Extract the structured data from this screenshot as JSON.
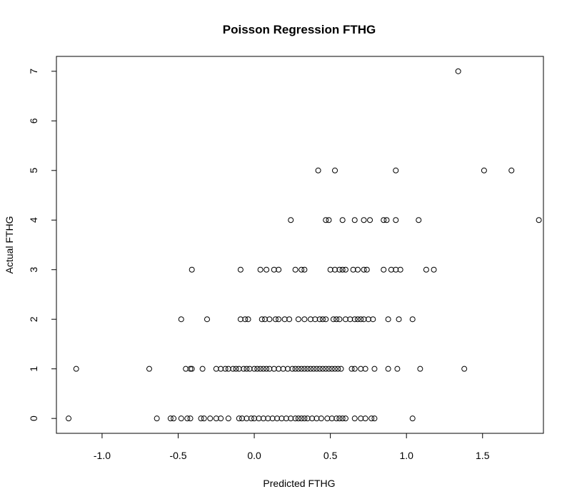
{
  "chart_data": {
    "type": "scatter",
    "title": "Poisson Regression FTHG",
    "xlabel": "Predicted FTHG",
    "ylabel": "Actual FTHG",
    "xlim": [
      -1.3,
      1.9
    ],
    "ylim": [
      -0.3,
      7.3
    ],
    "x_ticks": [
      -1.0,
      -0.5,
      0.0,
      0.5,
      1.0,
      1.5
    ],
    "x_tick_labels": [
      "-1.0",
      "-0.5",
      "0.0",
      "0.5",
      "1.0",
      "1.5"
    ],
    "y_ticks": [
      0,
      1,
      2,
      3,
      4,
      5,
      6,
      7
    ],
    "y_tick_labels": [
      "0",
      "1",
      "2",
      "3",
      "4",
      "5",
      "6",
      "7"
    ],
    "grid": false,
    "marker": "open-circle",
    "points": [
      {
        "x": -1.22,
        "y": 0
      },
      {
        "x": -0.64,
        "y": 0
      },
      {
        "x": -0.55,
        "y": 0
      },
      {
        "x": -0.53,
        "y": 0
      },
      {
        "x": -0.48,
        "y": 0
      },
      {
        "x": -0.44,
        "y": 0
      },
      {
        "x": -0.42,
        "y": 0
      },
      {
        "x": -0.35,
        "y": 0
      },
      {
        "x": -0.33,
        "y": 0
      },
      {
        "x": -0.29,
        "y": 0
      },
      {
        "x": -0.25,
        "y": 0
      },
      {
        "x": -0.22,
        "y": 0
      },
      {
        "x": -0.17,
        "y": 0
      },
      {
        "x": -0.1,
        "y": 0
      },
      {
        "x": -0.08,
        "y": 0
      },
      {
        "x": -0.05,
        "y": 0
      },
      {
        "x": -0.02,
        "y": 0
      },
      {
        "x": 0.0,
        "y": 0
      },
      {
        "x": 0.03,
        "y": 0
      },
      {
        "x": 0.06,
        "y": 0
      },
      {
        "x": 0.09,
        "y": 0
      },
      {
        "x": 0.12,
        "y": 0
      },
      {
        "x": 0.15,
        "y": 0
      },
      {
        "x": 0.18,
        "y": 0
      },
      {
        "x": 0.21,
        "y": 0
      },
      {
        "x": 0.24,
        "y": 0
      },
      {
        "x": 0.27,
        "y": 0
      },
      {
        "x": 0.29,
        "y": 0
      },
      {
        "x": 0.31,
        "y": 0
      },
      {
        "x": 0.33,
        "y": 0
      },
      {
        "x": 0.35,
        "y": 0
      },
      {
        "x": 0.38,
        "y": 0
      },
      {
        "x": 0.41,
        "y": 0
      },
      {
        "x": 0.44,
        "y": 0
      },
      {
        "x": 0.48,
        "y": 0
      },
      {
        "x": 0.51,
        "y": 0
      },
      {
        "x": 0.54,
        "y": 0
      },
      {
        "x": 0.56,
        "y": 0
      },
      {
        "x": 0.58,
        "y": 0
      },
      {
        "x": 0.6,
        "y": 0
      },
      {
        "x": 0.66,
        "y": 0
      },
      {
        "x": 0.7,
        "y": 0
      },
      {
        "x": 0.73,
        "y": 0
      },
      {
        "x": 0.77,
        "y": 0
      },
      {
        "x": 0.79,
        "y": 0
      },
      {
        "x": 1.04,
        "y": 0
      },
      {
        "x": -1.17,
        "y": 1
      },
      {
        "x": -0.69,
        "y": 1
      },
      {
        "x": -0.45,
        "y": 1
      },
      {
        "x": -0.42,
        "y": 1
      },
      {
        "x": -0.41,
        "y": 1
      },
      {
        "x": -0.34,
        "y": 1
      },
      {
        "x": -0.25,
        "y": 1
      },
      {
        "x": -0.22,
        "y": 1
      },
      {
        "x": -0.19,
        "y": 1
      },
      {
        "x": -0.17,
        "y": 1
      },
      {
        "x": -0.14,
        "y": 1
      },
      {
        "x": -0.12,
        "y": 1
      },
      {
        "x": -0.1,
        "y": 1
      },
      {
        "x": -0.07,
        "y": 1
      },
      {
        "x": -0.05,
        "y": 1
      },
      {
        "x": -0.03,
        "y": 1
      },
      {
        "x": 0.0,
        "y": 1
      },
      {
        "x": 0.02,
        "y": 1
      },
      {
        "x": 0.04,
        "y": 1
      },
      {
        "x": 0.06,
        "y": 1
      },
      {
        "x": 0.08,
        "y": 1
      },
      {
        "x": 0.1,
        "y": 1
      },
      {
        "x": 0.13,
        "y": 1
      },
      {
        "x": 0.16,
        "y": 1
      },
      {
        "x": 0.19,
        "y": 1
      },
      {
        "x": 0.22,
        "y": 1
      },
      {
        "x": 0.25,
        "y": 1
      },
      {
        "x": 0.27,
        "y": 1
      },
      {
        "x": 0.29,
        "y": 1
      },
      {
        "x": 0.31,
        "y": 1
      },
      {
        "x": 0.33,
        "y": 1
      },
      {
        "x": 0.35,
        "y": 1
      },
      {
        "x": 0.37,
        "y": 1
      },
      {
        "x": 0.39,
        "y": 1
      },
      {
        "x": 0.41,
        "y": 1
      },
      {
        "x": 0.43,
        "y": 1
      },
      {
        "x": 0.45,
        "y": 1
      },
      {
        "x": 0.47,
        "y": 1
      },
      {
        "x": 0.49,
        "y": 1
      },
      {
        "x": 0.51,
        "y": 1
      },
      {
        "x": 0.53,
        "y": 1
      },
      {
        "x": 0.55,
        "y": 1
      },
      {
        "x": 0.57,
        "y": 1
      },
      {
        "x": 0.64,
        "y": 1
      },
      {
        "x": 0.66,
        "y": 1
      },
      {
        "x": 0.7,
        "y": 1
      },
      {
        "x": 0.73,
        "y": 1
      },
      {
        "x": 0.79,
        "y": 1
      },
      {
        "x": 0.88,
        "y": 1
      },
      {
        "x": 0.94,
        "y": 1
      },
      {
        "x": 1.09,
        "y": 1
      },
      {
        "x": 1.38,
        "y": 1
      },
      {
        "x": -0.48,
        "y": 2
      },
      {
        "x": -0.31,
        "y": 2
      },
      {
        "x": -0.09,
        "y": 2
      },
      {
        "x": -0.06,
        "y": 2
      },
      {
        "x": -0.04,
        "y": 2
      },
      {
        "x": 0.05,
        "y": 2
      },
      {
        "x": 0.07,
        "y": 2
      },
      {
        "x": 0.1,
        "y": 2
      },
      {
        "x": 0.14,
        "y": 2
      },
      {
        "x": 0.16,
        "y": 2
      },
      {
        "x": 0.2,
        "y": 2
      },
      {
        "x": 0.23,
        "y": 2
      },
      {
        "x": 0.29,
        "y": 2
      },
      {
        "x": 0.33,
        "y": 2
      },
      {
        "x": 0.37,
        "y": 2
      },
      {
        "x": 0.4,
        "y": 2
      },
      {
        "x": 0.43,
        "y": 2
      },
      {
        "x": 0.45,
        "y": 2
      },
      {
        "x": 0.47,
        "y": 2
      },
      {
        "x": 0.52,
        "y": 2
      },
      {
        "x": 0.54,
        "y": 2
      },
      {
        "x": 0.56,
        "y": 2
      },
      {
        "x": 0.6,
        "y": 2
      },
      {
        "x": 0.63,
        "y": 2
      },
      {
        "x": 0.66,
        "y": 2
      },
      {
        "x": 0.68,
        "y": 2
      },
      {
        "x": 0.7,
        "y": 2
      },
      {
        "x": 0.72,
        "y": 2
      },
      {
        "x": 0.75,
        "y": 2
      },
      {
        "x": 0.78,
        "y": 2
      },
      {
        "x": 0.88,
        "y": 2
      },
      {
        "x": 0.95,
        "y": 2
      },
      {
        "x": 1.04,
        "y": 2
      },
      {
        "x": -0.41,
        "y": 3
      },
      {
        "x": -0.09,
        "y": 3
      },
      {
        "x": 0.04,
        "y": 3
      },
      {
        "x": 0.08,
        "y": 3
      },
      {
        "x": 0.13,
        "y": 3
      },
      {
        "x": 0.16,
        "y": 3
      },
      {
        "x": 0.27,
        "y": 3
      },
      {
        "x": 0.31,
        "y": 3
      },
      {
        "x": 0.33,
        "y": 3
      },
      {
        "x": 0.5,
        "y": 3
      },
      {
        "x": 0.53,
        "y": 3
      },
      {
        "x": 0.56,
        "y": 3
      },
      {
        "x": 0.58,
        "y": 3
      },
      {
        "x": 0.6,
        "y": 3
      },
      {
        "x": 0.65,
        "y": 3
      },
      {
        "x": 0.68,
        "y": 3
      },
      {
        "x": 0.72,
        "y": 3
      },
      {
        "x": 0.74,
        "y": 3
      },
      {
        "x": 0.85,
        "y": 3
      },
      {
        "x": 0.9,
        "y": 3
      },
      {
        "x": 0.93,
        "y": 3
      },
      {
        "x": 0.96,
        "y": 3
      },
      {
        "x": 1.13,
        "y": 3
      },
      {
        "x": 1.18,
        "y": 3
      },
      {
        "x": 0.24,
        "y": 4
      },
      {
        "x": 0.47,
        "y": 4
      },
      {
        "x": 0.49,
        "y": 4
      },
      {
        "x": 0.58,
        "y": 4
      },
      {
        "x": 0.66,
        "y": 4
      },
      {
        "x": 0.72,
        "y": 4
      },
      {
        "x": 0.76,
        "y": 4
      },
      {
        "x": 0.85,
        "y": 4
      },
      {
        "x": 0.87,
        "y": 4
      },
      {
        "x": 0.93,
        "y": 4
      },
      {
        "x": 1.08,
        "y": 4
      },
      {
        "x": 1.87,
        "y": 4
      },
      {
        "x": 0.42,
        "y": 5
      },
      {
        "x": 0.53,
        "y": 5
      },
      {
        "x": 0.93,
        "y": 5
      },
      {
        "x": 1.51,
        "y": 5
      },
      {
        "x": 1.69,
        "y": 5
      },
      {
        "x": 1.34,
        "y": 7
      }
    ]
  }
}
